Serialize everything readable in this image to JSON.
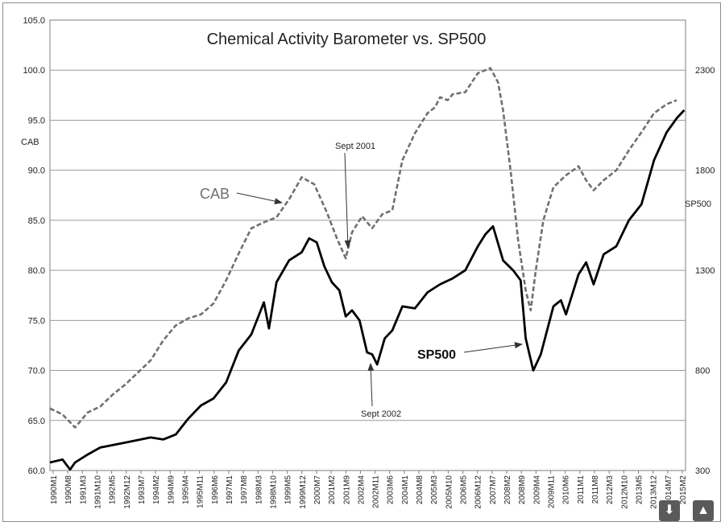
{
  "chart_data": {
    "type": "line",
    "title": "Chemical Activity Barometer vs. SP500",
    "ylabel": "CAB",
    "y2label": "SP500",
    "ylim": [
      60.0,
      105.0
    ],
    "y2lim": [
      300,
      2550
    ],
    "yticks": [
      "60.0",
      "65.0",
      "70.0",
      "75.0",
      "80.0",
      "85.0",
      "90.0",
      "95.0",
      "100.0",
      "105.0"
    ],
    "y2ticks": [
      "300",
      "800",
      "1300",
      "1800",
      "2300"
    ],
    "xticks": [
      "1990M1",
      "1990M8",
      "1991M3",
      "1991M10",
      "1992M5",
      "1992M12",
      "1993M7",
      "1994M2",
      "1994M9",
      "1995M4",
      "1995M11",
      "1996M6",
      "1997M1",
      "1997M8",
      "1998M3",
      "1998M10",
      "1999M5",
      "1999M12",
      "2000M7",
      "2001M2",
      "2001M9",
      "2002M4",
      "2002M11",
      "2003M6",
      "2004M1",
      "2004M8",
      "2005M3",
      "2005M10",
      "2006M5",
      "2006M12",
      "2007M7",
      "2008M2",
      "2008M9",
      "2009M4",
      "2009M11",
      "2010M6",
      "2011M1",
      "2011M8",
      "2012M3",
      "2012M10",
      "2013M5",
      "2013M12",
      "2014M7",
      "2015M2"
    ],
    "series": [
      {
        "name": "CAB",
        "axis": "left",
        "style": "dashed",
        "color": "#707070",
        "x": [
          1990.0,
          1990.5,
          1991.0,
          1991.5,
          1992.0,
          1992.5,
          1993.0,
          1993.5,
          1994.0,
          1994.5,
          1995.0,
          1995.5,
          1996.0,
          1996.5,
          1997.0,
          1997.5,
          1998.0,
          1998.5,
          1999.0,
          1999.5,
          2000.0,
          2000.5,
          2001.0,
          2001.4,
          2001.75,
          2002.0,
          2002.4,
          2002.8,
          2003.2,
          2003.6,
          2004.0,
          2004.5,
          2005.0,
          2005.3,
          2005.5,
          2005.8,
          2006.0,
          2006.5,
          2007.0,
          2007.5,
          2007.8,
          2008.0,
          2008.3,
          2008.6,
          2008.9,
          2009.1,
          2009.3,
          2009.6,
          2010.0,
          2010.5,
          2011.0,
          2011.3,
          2011.6,
          2012.0,
          2012.5,
          2013.0,
          2013.5,
          2014.0,
          2014.5,
          2014.9
        ],
        "values": [
          66.2,
          65.6,
          64.3,
          65.8,
          66.4,
          67.6,
          68.6,
          69.8,
          71.0,
          73.0,
          74.5,
          75.2,
          75.6,
          76.7,
          79.0,
          81.7,
          84.2,
          84.8,
          85.3,
          87.1,
          89.3,
          88.6,
          85.8,
          83.2,
          81.2,
          83.8,
          85.4,
          84.2,
          85.6,
          86.0,
          91.0,
          93.7,
          95.7,
          96.3,
          97.3,
          97.0,
          97.6,
          97.8,
          99.7,
          100.2,
          98.8,
          96.0,
          90.0,
          83.0,
          78.0,
          76.0,
          80.0,
          85.0,
          88.3,
          89.5,
          90.4,
          89.0,
          88.0,
          89.0,
          90.0,
          92.0,
          93.8,
          95.7,
          96.6,
          97.0
        ]
      },
      {
        "name": "SP500",
        "axis": "right",
        "style": "solid",
        "color": "#000000",
        "x": [
          1990.0,
          1990.5,
          1990.8,
          1991.0,
          1991.5,
          1992.0,
          1993.0,
          1994.0,
          1994.5,
          1995.0,
          1995.5,
          1996.0,
          1996.5,
          1997.0,
          1997.5,
          1998.0,
          1998.5,
          1998.7,
          1999.0,
          1999.5,
          2000.0,
          2000.3,
          2000.6,
          2000.9,
          2001.2,
          2001.5,
          2001.75,
          2002.0,
          2002.3,
          2002.6,
          2002.8,
          2003.0,
          2003.3,
          2003.6,
          2004.0,
          2004.5,
          2005.0,
          2005.5,
          2006.0,
          2006.5,
          2007.0,
          2007.3,
          2007.6,
          2008.0,
          2008.4,
          2008.7,
          2008.9,
          2009.2,
          2009.5,
          2010.0,
          2010.3,
          2010.5,
          2011.0,
          2011.3,
          2011.6,
          2012.0,
          2012.5,
          2013.0,
          2013.5,
          2014.0,
          2014.5,
          2014.9,
          2015.2
        ],
        "values": [
          340,
          355,
          305,
          340,
          380,
          415,
          440,
          465,
          455,
          480,
          560,
          625,
          660,
          740,
          900,
          980,
          1140,
          1010,
          1240,
          1350,
          1390,
          1460,
          1440,
          1320,
          1240,
          1200,
          1070,
          1100,
          1050,
          890,
          880,
          830,
          960,
          1000,
          1120,
          1110,
          1190,
          1230,
          1260,
          1300,
          1420,
          1480,
          1520,
          1350,
          1300,
          1250,
          960,
          800,
          880,
          1120,
          1150,
          1080,
          1280,
          1340,
          1230,
          1380,
          1420,
          1550,
          1630,
          1850,
          1990,
          2060,
          2100
        ]
      }
    ],
    "annotations": [
      {
        "text": "CAB"
      },
      {
        "text": "SP500"
      },
      {
        "text": "Sept 2001"
      },
      {
        "text": "Sept 2002"
      }
    ],
    "grid": true,
    "legend": "none"
  }
}
